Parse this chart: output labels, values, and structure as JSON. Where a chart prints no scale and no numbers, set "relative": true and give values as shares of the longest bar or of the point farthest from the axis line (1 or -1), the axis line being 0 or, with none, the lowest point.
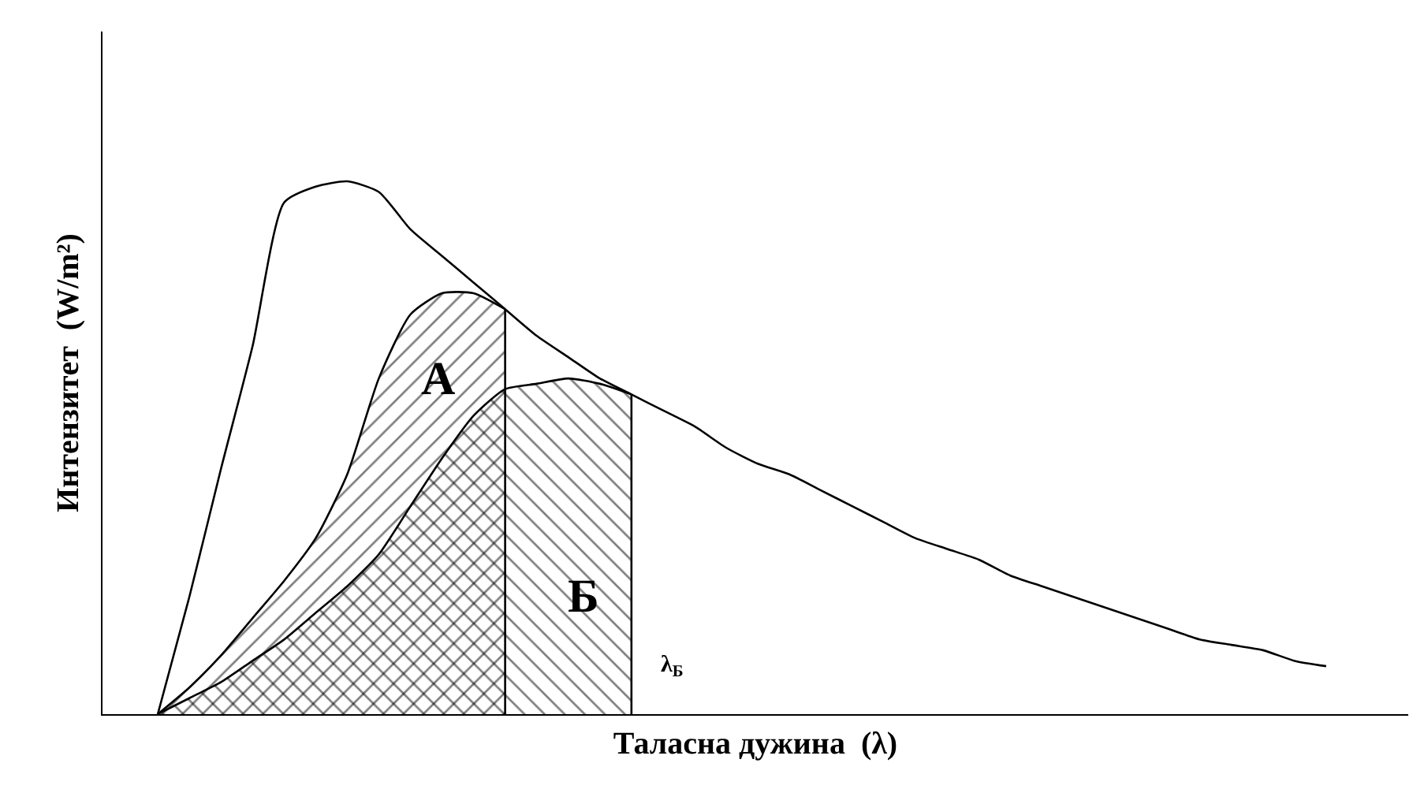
{
  "chart_data": {
    "type": "area",
    "relative": true,
    "xlabel": "Таласна дужина  (λ)",
    "ylabel": "Интензитет  (W/m²)",
    "legend": false,
    "categories": [
      null,
      null,
      null,
      null,
      null,
      null,
      null,
      null,
      null,
      null,
      null,
      null,
      null,
      null,
      null,
      null,
      null,
      null,
      null,
      null,
      null,
      null,
      null,
      null,
      null,
      null,
      null,
      null,
      null,
      null,
      null,
      null,
      null,
      null,
      null,
      null,
      null,
      null
    ],
    "series": [
      {
        "type": "line",
        "color": "#000000",
        "values": [
          0,
          0.22,
          0.46,
          0.69,
          0.96,
          0.99,
          1.0,
          0.98,
          0.91,
          0.86,
          0.81,
          0.76,
          0.71,
          0.67,
          0.63,
          0.6,
          0.57,
          0.54,
          0.5,
          0.47,
          0.45,
          0.42,
          0.39,
          0.36,
          0.33,
          0.31,
          0.29,
          0.26,
          0.24,
          0.22,
          0.2,
          0.18,
          0.16,
          0.14,
          0.13,
          0.12,
          0.1,
          0.09
        ]
      },
      {
        "color": "#000000",
        "values": [
          0,
          0.05,
          0.11,
          0.18,
          0.25,
          0.33,
          0.45,
          0.63,
          0.75,
          0.79,
          0.79,
          0.76,
          null,
          null,
          null,
          null,
          null,
          null,
          null,
          null,
          null,
          null,
          null,
          null,
          null,
          null,
          null,
          null,
          null,
          null,
          null,
          null,
          null,
          null,
          null,
          null,
          null,
          null
        ]
      },
      {
        "color": "#000000",
        "values": [
          0,
          0.03,
          0.06,
          0.1,
          0.14,
          0.19,
          0.24,
          0.3,
          0.39,
          0.48,
          0.56,
          0.61,
          0.62,
          0.63,
          0.62,
          0.6,
          null,
          null,
          null,
          null,
          null,
          null,
          null,
          null,
          null,
          null,
          null,
          null,
          null,
          null,
          null,
          null,
          null,
          null,
          null,
          null,
          null,
          null
        ]
      }
    ],
    "annotations": [
      "А",
      "Б",
      "λ$_{Б}$"
    ]
  }
}
